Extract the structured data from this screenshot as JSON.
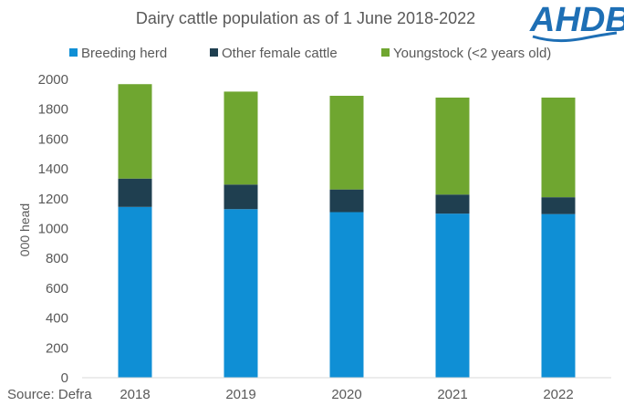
{
  "chart_data": {
    "type": "bar",
    "stacked": true,
    "title": "Dairy cattle population as of 1 June 2018-2022",
    "ylabel": "000 head",
    "xlabel": "",
    "ylim": [
      0,
      2000
    ],
    "yticks": [
      0,
      200,
      400,
      600,
      800,
      1000,
      1200,
      1400,
      1600,
      1800,
      2000
    ],
    "categories": [
      "2018",
      "2019",
      "2020",
      "2021",
      "2022"
    ],
    "series": [
      {
        "name": "Breeding herd",
        "color": "#0f8fd5",
        "values": [
          1145,
          1130,
          1110,
          1100,
          1097
        ]
      },
      {
        "name": "Other female cattle",
        "color": "#1f3f50",
        "values": [
          190,
          165,
          152,
          128,
          113
        ]
      },
      {
        "name": "Youngstock (<2 years old)",
        "color": "#6fa630",
        "values": [
          633,
          623,
          628,
          650,
          668
        ]
      }
    ],
    "legend_position": "top",
    "grid": false,
    "source": "Source: Defra"
  },
  "logo": {
    "text": "AHDB",
    "color": "#1e6fb5"
  }
}
